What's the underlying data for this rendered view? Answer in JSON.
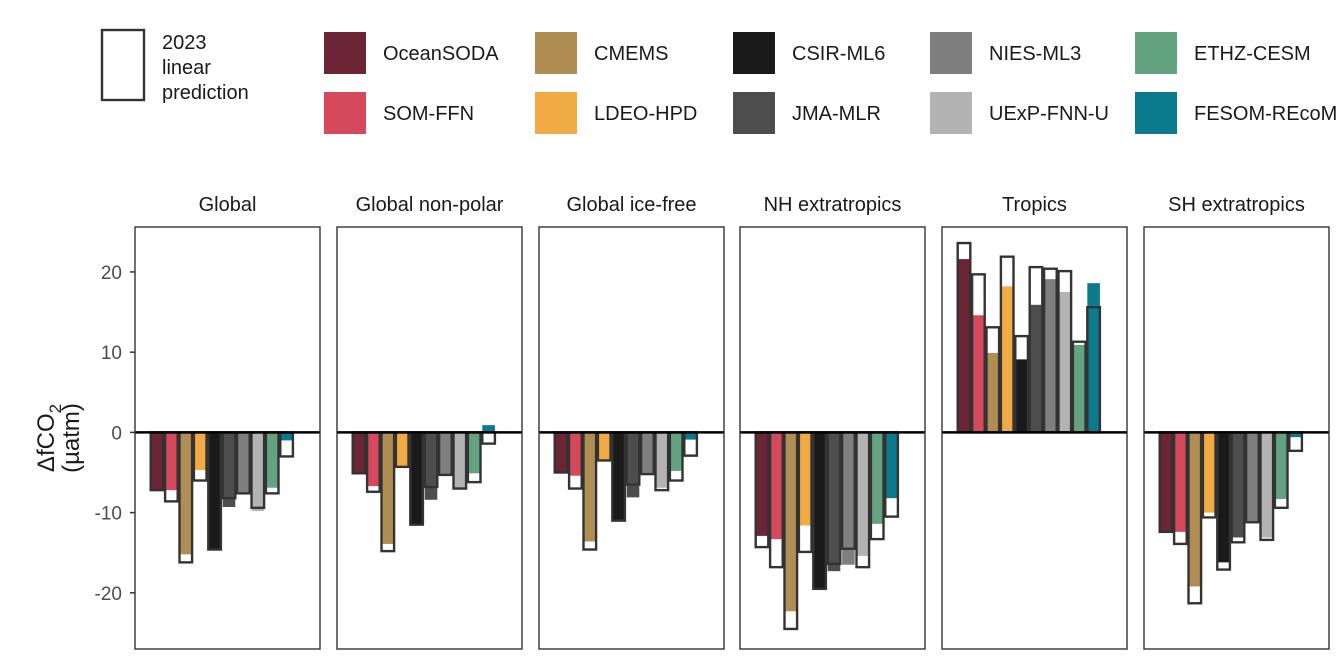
{
  "legend": {
    "prediction_label": [
      "2023",
      "linear",
      "prediction"
    ]
  },
  "chart_data": {
    "type": "bar",
    "ylabel": "ΔfCO₂ (µatm)",
    "ylabel_lines": [
      "ΔfCO",
      "2",
      "(µatm)"
    ],
    "ylim": [
      -27,
      25.6
    ],
    "yticks": [
      20,
      10,
      0,
      -10,
      -20
    ],
    "grid": false,
    "legend_position": "top",
    "series": [
      {
        "name": "OceanSODA",
        "color": "#6b2535"
      },
      {
        "name": "SOM-FFN",
        "color": "#d6495c"
      },
      {
        "name": "CMEMS",
        "color": "#b08d52"
      },
      {
        "name": "LDEO-HPD",
        "color": "#f0ab45"
      },
      {
        "name": "CSIR-ML6",
        "color": "#1a1a1a"
      },
      {
        "name": "JMA-MLR",
        "color": "#4d4d4d"
      },
      {
        "name": "NIES-ML3",
        "color": "#7f7f7f"
      },
      {
        "name": "UExP-FNN-U",
        "color": "#b3b3b3"
      },
      {
        "name": "ETHZ-CESM",
        "color": "#64a37f"
      },
      {
        "name": "FESOM-REcoM",
        "color": "#0a7a8c"
      }
    ],
    "panels": [
      {
        "title": "Global",
        "observed": [
          -7.2,
          -7.2,
          -15.2,
          -4.7,
          -14.6,
          -9.3,
          -7.6,
          -9.8,
          -6.9,
          -1.0
        ],
        "prediction": [
          -7.2,
          -8.6,
          -16.2,
          -6.0,
          -14.6,
          -8.2,
          -7.6,
          -9.4,
          -7.6,
          -3.0
        ]
      },
      {
        "title": "Global non-polar",
        "observed": [
          -5.1,
          -6.7,
          -13.9,
          -4.3,
          -11.5,
          -8.4,
          -5.3,
          -7.0,
          -5.1,
          0.9
        ],
        "prediction": [
          -5.1,
          -7.4,
          -14.8,
          -4.3,
          -11.5,
          -6.8,
          -5.3,
          -7.0,
          -6.2,
          -1.4
        ]
      },
      {
        "title": "Global ice-free",
        "observed": [
          -5.0,
          -5.4,
          -13.6,
          -3.5,
          -11.0,
          -8.1,
          -5.2,
          -6.9,
          -4.8,
          -0.9
        ],
        "prediction": [
          -5.0,
          -7.0,
          -14.6,
          -3.5,
          -11.0,
          -6.5,
          -5.2,
          -7.2,
          -6.0,
          -2.9
        ]
      },
      {
        "title": "NH extratropics",
        "observed": [
          -12.9,
          -13.3,
          -22.3,
          -11.6,
          -19.5,
          -17.3,
          -16.5,
          -15.4,
          -11.4,
          -8.2
        ],
        "prediction": [
          -14.3,
          -16.8,
          -24.5,
          -14.9,
          -19.5,
          -16.4,
          -14.5,
          -16.8,
          -13.3,
          -10.5
        ]
      },
      {
        "title": "Tropics",
        "observed": [
          21.6,
          14.6,
          9.9,
          18.2,
          9.1,
          15.9,
          19.1,
          17.5,
          10.9,
          18.6
        ],
        "prediction": [
          23.6,
          19.7,
          13.1,
          21.9,
          12.0,
          20.6,
          20.4,
          20.1,
          11.3,
          15.6
        ]
      },
      {
        "title": "SH extratropics",
        "observed": [
          -12.4,
          -12.4,
          -19.2,
          -10.0,
          -16.2,
          -13.1,
          -11.2,
          -13.1,
          -8.3,
          -0.6
        ],
        "prediction": [
          -12.4,
          -13.9,
          -21.3,
          -10.6,
          -17.1,
          -13.7,
          -11.2,
          -13.4,
          -9.4,
          -2.3
        ]
      }
    ]
  }
}
